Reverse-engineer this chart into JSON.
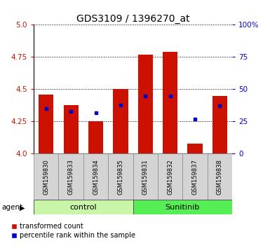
{
  "title": "GDS3109 / 1396270_at",
  "samples": [
    "GSM159830",
    "GSM159833",
    "GSM159834",
    "GSM159835",
    "GSM159831",
    "GSM159832",
    "GSM159837",
    "GSM159838"
  ],
  "group_labels": [
    "control",
    "Sunitinib"
  ],
  "group_colors": [
    "#c8f5a8",
    "#55ee55"
  ],
  "transformed_count": [
    4.46,
    4.38,
    4.25,
    4.5,
    4.77,
    4.79,
    4.08,
    4.45
  ],
  "percentile_rank": [
    35,
    33,
    32,
    38,
    45,
    45,
    27,
    37
  ],
  "ylim_left": [
    4.0,
    5.0
  ],
  "ylim_right": [
    0,
    100
  ],
  "yticks_left": [
    4.0,
    4.25,
    4.5,
    4.75,
    5.0
  ],
  "yticks_right": [
    0,
    25,
    50,
    75,
    100
  ],
  "bar_color": "#cc1100",
  "dot_color": "#0000cc",
  "bar_width": 0.6,
  "bg_color": "#ffffff",
  "label_color_left": "#cc1100",
  "label_color_right": "#0000cc",
  "agent_label": "agent",
  "legend_items": [
    "transformed count",
    "percentile rank within the sample"
  ],
  "sample_box_color": "#d4d4d4",
  "n_control": 4,
  "n_sunitinib": 4
}
